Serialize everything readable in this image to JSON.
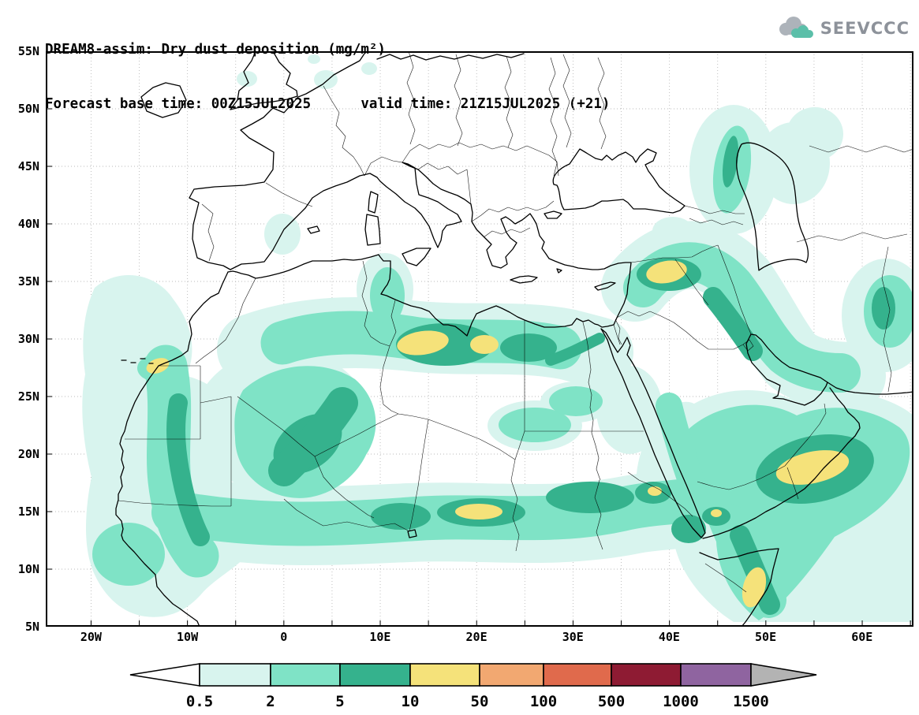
{
  "header": {
    "title_line1": "DREAM8-assim: Dry dust deposition (mg/m²)",
    "title_line2": "Forecast base time: 00Z15JUL2025      valid time: 21Z15JUL2025 (+21)",
    "logo_text": "SEEVCCC"
  },
  "axes": {
    "lat_labels": [
      "55N",
      "50N",
      "45N",
      "40N",
      "35N",
      "30N",
      "25N",
      "20N",
      "15N",
      "10N",
      "5N"
    ],
    "lon_labels": [
      "20W",
      "10W",
      "0",
      "10E",
      "20E",
      "30E",
      "40E",
      "50E",
      "60E"
    ]
  },
  "colorbar": {
    "levels": [
      "0.5",
      "2",
      "5",
      "10",
      "50",
      "100",
      "500",
      "1000",
      "1500"
    ],
    "colors": {
      "below_min": "#ffffff",
      "bins": [
        "#d8f4ee",
        "#7fe3c6",
        "#35b28d",
        "#f5e27a",
        "#f2a871",
        "#e06a4c",
        "#8e1b33",
        "#8f64a0"
      ],
      "above_max": "#b3b3b3"
    }
  },
  "logo_colors": {
    "cloud_back": "#adb3ba",
    "cloud_front": "#5bbfa9",
    "text": "#8d929a"
  }
}
